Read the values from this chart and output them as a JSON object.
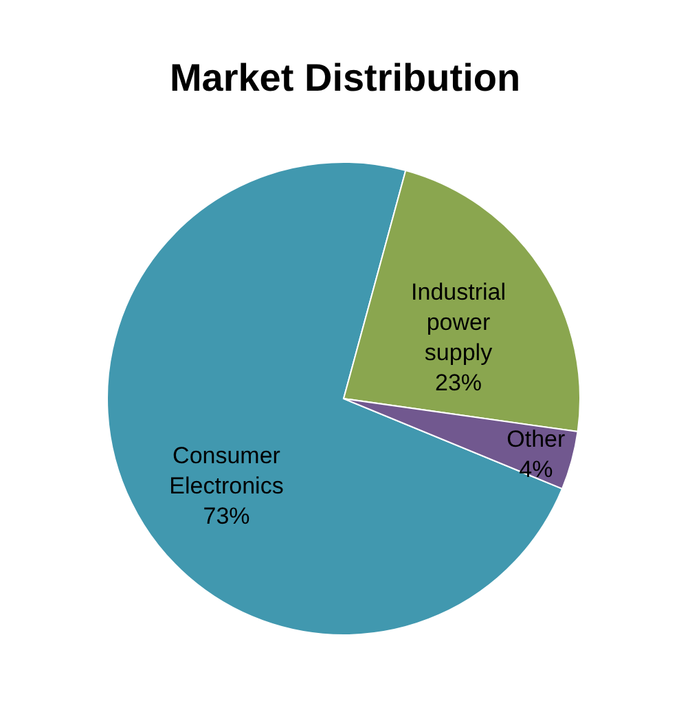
{
  "chart_data": {
    "type": "pie",
    "title": "Market Distribution",
    "categories": [
      "Consumer Electronics",
      "Industrial power supply",
      "Other"
    ],
    "values": [
      73,
      23,
      4
    ],
    "colors": [
      "#4198af",
      "#8aa64f",
      "#71588f"
    ],
    "value_labels": [
      "73%",
      "23%",
      "4%"
    ]
  }
}
